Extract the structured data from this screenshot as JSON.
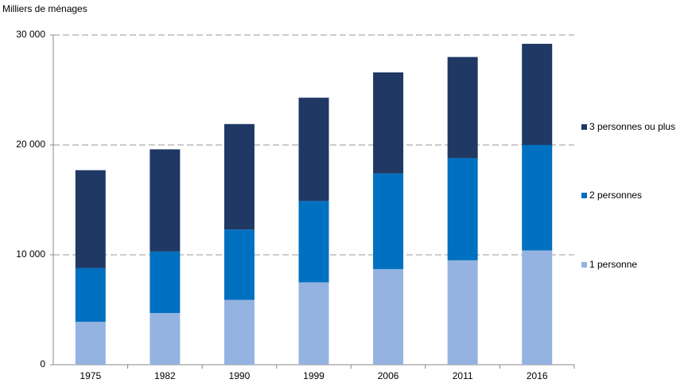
{
  "chart_data": {
    "type": "stacked-bar",
    "y_axis_label": "Milliers de ménages",
    "categories": [
      "1975",
      "1982",
      "1990",
      "1999",
      "2006",
      "2011",
      "2016"
    ],
    "series": [
      {
        "name": "1 personne",
        "color": "#95b3e0",
        "values": [
          3900,
          4700,
          5900,
          7500,
          8700,
          9500,
          10400
        ]
      },
      {
        "name": "2 personnes",
        "color": "#0070c0",
        "values": [
          4900,
          5600,
          6400,
          7400,
          8700,
          9300,
          9600
        ]
      },
      {
        "name": "3 personnes ou plus",
        "color": "#1f3864",
        "values": [
          8900,
          9300,
          9600,
          9400,
          9200,
          9200,
          9200
        ]
      }
    ],
    "ylim": [
      0,
      30000
    ],
    "yticks": [
      0,
      {
        "value": 10000,
        "label": "10 000"
      },
      {
        "value": 20000,
        "label": "20 000"
      },
      {
        "value": 30000,
        "label": "30 000"
      }
    ],
    "grid": true,
    "legend": "right"
  }
}
